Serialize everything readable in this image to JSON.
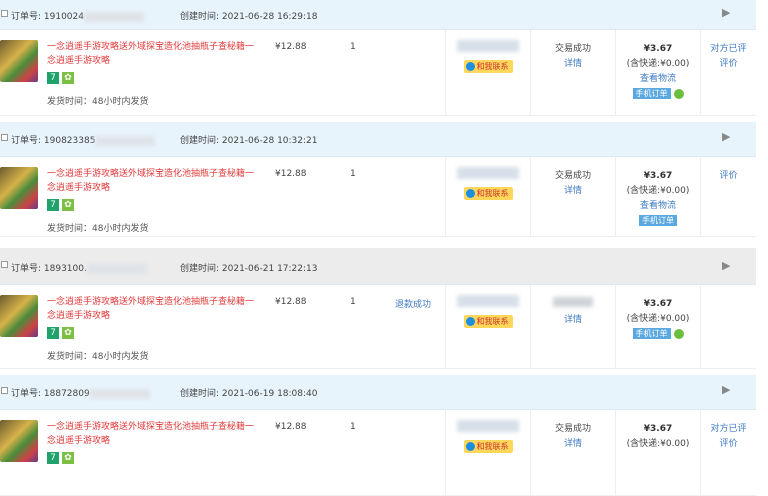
{
  "labels": {
    "order_no": "订单号: ",
    "created": "创建时间: ",
    "ship": "发货时间：48小时内发货",
    "contact": "和我联系",
    "detail": "详情",
    "logistics": "查看物流",
    "mobile": "手机订单",
    "flag": "▶",
    "tag7": "7",
    "tagg": "✿"
  },
  "orders": [
    {
      "no": "1910024",
      "created": "2021-06-28 16:29:18",
      "title": "一念逍遥手游攻略送外域探宝造化池抽瓶子查秘籍一念逍遥手游攻略",
      "price": "¥12.88",
      "qty": "1",
      "status": "交易成功",
      "amount": "¥3.67",
      "shipping": "(含快递:¥0.00)",
      "eval1": "对方已评",
      "eval2": "评价",
      "header_color": "#e8f4fc"
    },
    {
      "no": "190823385",
      "created": "2021-06-28 10:32:21",
      "title": "一念逍遥手游攻略送外域探宝造化池抽瓶子查秘籍一念逍遥手游攻略",
      "price": "¥12.88",
      "qty": "1",
      "status": "交易成功",
      "amount": "¥3.67",
      "shipping": "(含快递:¥0.00)",
      "eval2": "评价",
      "header_color": "#e8f4fc"
    },
    {
      "no": "1893100.",
      "created": "2021-06-21 17:22:13",
      "title": "一念逍遥手游攻略送外域探宝造化池抽瓶子查秘籍一念逍遥手游攻略",
      "price": "¥12.88",
      "qty": "1",
      "refund": "退款成功",
      "amount": "¥3.67",
      "shipping": "(含快递:¥0.00)",
      "header_color": "#ececec"
    },
    {
      "no": "18872809",
      "created": "2021-06-19 18:08:40",
      "title": "一念逍遥手游攻略送外域探宝造化池抽瓶子查秘籍一念逍遥手游攻略",
      "price": "¥12.88",
      "qty": "1",
      "status": "交易成功",
      "amount": "¥3.67",
      "shipping": "(含快递:¥0.00)",
      "eval1": "对方已评",
      "eval2": "评价",
      "header_color": "#e8f4fc"
    }
  ]
}
